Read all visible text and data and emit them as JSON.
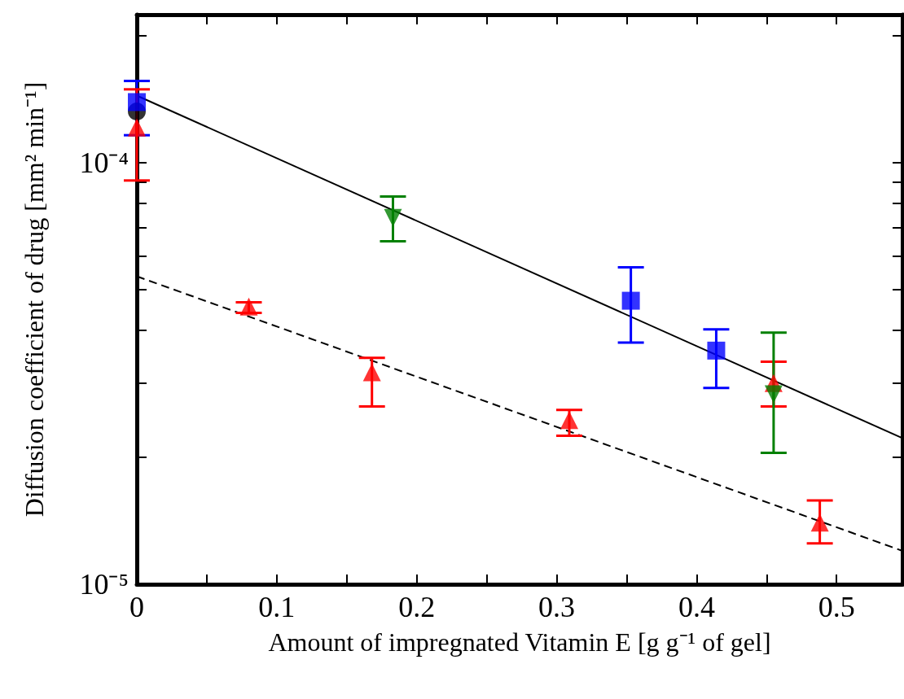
{
  "chart_data": {
    "type": "scatter",
    "xlabel": "Amount of impregnated Vitamin E [g g⁻¹ of gel]",
    "ylabel": "Diffusion coefficient of drug [mm² min⁻¹]",
    "log": "y",
    "grid": false,
    "xlim": [
      0,
      0.547
    ],
    "xticks": [
      0,
      {
        "value": 0.05,
        "label": null
      },
      0.1,
      {
        "value": 0.15,
        "label": null
      },
      0.2,
      {
        "value": 0.25,
        "label": null
      },
      0.3,
      {
        "value": 0.35,
        "label": null
      },
      0.4,
      {
        "value": 0.45,
        "label": null
      },
      0.5
    ],
    "ylim": [
      1e-05,
      0.000224
    ],
    "yticks": [
      {
        "value": 1e-05,
        "label": "10⁻⁵"
      },
      {
        "value": 2e-05,
        "label": null
      },
      {
        "value": 3e-05,
        "label": null
      },
      {
        "value": 4e-05,
        "label": null
      },
      {
        "value": 5e-05,
        "label": null
      },
      {
        "value": 6e-05,
        "label": null
      },
      {
        "value": 7e-05,
        "label": null
      },
      {
        "value": 8e-05,
        "label": null
      },
      {
        "value": 9e-05,
        "label": null
      },
      {
        "value": 0.0001,
        "label": "10⁻⁴"
      },
      {
        "value": 0.0002,
        "label": null
      }
    ],
    "series": [
      {
        "type": "line",
        "color": "#000000",
        "marker": "none",
        "line_style": "solid",
        "x": [
          0,
          0.547
        ],
        "values": [
          0.000144,
          2.22e-05
        ]
      },
      {
        "type": "line",
        "color": "#000000",
        "marker": "none",
        "line_style": "dashed",
        "x": [
          0,
          0.547
        ],
        "values": [
          5.37e-05,
          1.2e-05
        ]
      },
      {
        "color": "#000000",
        "marker": "circle",
        "x": [
          0
        ],
        "values": [
          0.000132
        ]
      },
      {
        "color": "#0000ff",
        "marker": "square",
        "x": [
          0,
          0.353,
          0.414
        ],
        "values": [
          0.000139,
          4.7e-05,
          3.58e-05
        ],
        "errors": [
          [
            0.000116,
            0.000156
          ],
          [
            3.74e-05,
            5.64e-05
          ],
          [
            2.92e-05,
            4.02e-05
          ]
        ]
      },
      {
        "color": "#ff0000",
        "marker": "triangle",
        "x": [
          0,
          0.08,
          0.168,
          0.309,
          0.488,
          0.455
        ],
        "values": [
          0.000121,
          4.55e-05,
          3.18e-05,
          2.45e-05,
          1.4e-05,
          3e-05
        ],
        "errors": [
          [
            9.06e-05,
            0.000149
          ],
          [
            4.4e-05,
            4.66e-05
          ],
          [
            2.64e-05,
            3.44e-05
          ],
          [
            2.25e-05,
            2.59e-05
          ],
          [
            1.25e-05,
            1.58e-05
          ],
          [
            2.64e-05,
            3.37e-05
          ]
        ]
      },
      {
        "color": "#008000",
        "marker": "triangle-down",
        "x": [
          0.183,
          0.455
        ],
        "values": [
          7.39e-05,
          2.82e-05
        ],
        "errors": [
          [
            6.5e-05,
            8.3e-05
          ],
          [
            2.05e-05,
            3.95e-05
          ]
        ]
      }
    ]
  }
}
